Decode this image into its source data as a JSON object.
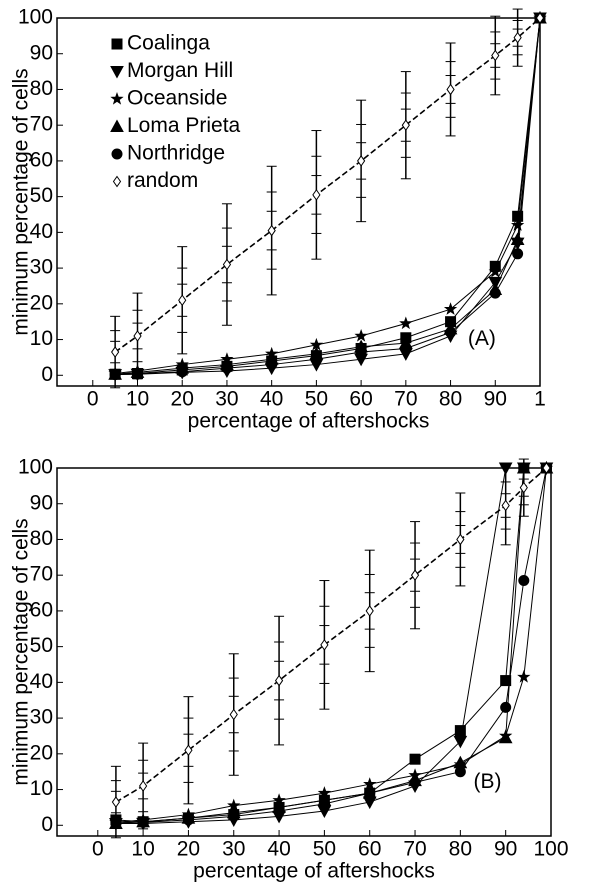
{
  "chart_data": [
    {
      "type": "line",
      "annotation": "(A)",
      "annotation_at": [
        87,
        10
      ],
      "xlabel": "percentage of aftershocks",
      "ylabel": "minimum percentage of cells",
      "x": [
        5,
        10,
        20,
        30,
        40,
        50,
        60,
        70,
        80,
        90,
        95,
        100
      ],
      "xlim": [
        -8,
        100
      ],
      "ylim": [
        -3,
        100
      ],
      "xticks": [
        0,
        10,
        20,
        30,
        40,
        50,
        60,
        70,
        80,
        90,
        {
          "value": 100,
          "label": "1"
        }
      ],
      "yticks": [
        0,
        10,
        20,
        30,
        40,
        50,
        60,
        70,
        80,
        90,
        100
      ],
      "legend": "upper left",
      "series": [
        {
          "name": "Coalinga",
          "marker": "square",
          "color": "#000000",
          "values": [
            0.3,
            0.5,
            1.5,
            2.5,
            4,
            5.5,
            7.5,
            10.5,
            15,
            30.5,
            44.5,
            100
          ]
        },
        {
          "name": "Morgan Hill",
          "marker": "triangle-down",
          "color": "#000000",
          "values": [
            0.2,
            0.3,
            0.8,
            1.2,
            2,
            3,
            4.5,
            6,
            11,
            26,
            37,
            100
          ]
        },
        {
          "name": "Oceanside",
          "marker": "star",
          "color": "#000000",
          "values": [
            0.5,
            1.2,
            3,
            4.5,
            6,
            8.5,
            11,
            14.5,
            18.5,
            29,
            42,
            100
          ]
        },
        {
          "name": "Loma Prieta",
          "marker": "triangle-up",
          "color": "#000000",
          "values": [
            0.3,
            0.8,
            2,
            3,
            4.5,
            6,
            8,
            9,
            13,
            24,
            38,
            100
          ]
        },
        {
          "name": "Northridge",
          "marker": "circle",
          "color": "#000000",
          "values": [
            0.2,
            0.4,
            1,
            2,
            3,
            4.5,
            6.5,
            7.5,
            12,
            23,
            34,
            100
          ]
        },
        {
          "name": "random",
          "marker": "diamond",
          "color": "#000000",
          "dashed": true,
          "values": [
            6.5,
            11,
            21,
            31,
            40.5,
            50.5,
            60,
            70,
            80,
            89.5,
            94.5,
            100
          ],
          "errors": [
            10,
            12,
            15,
            17,
            18,
            18,
            17,
            15,
            13,
            11,
            8,
            0
          ]
        }
      ]
    },
    {
      "type": "line",
      "annotation": "(B)",
      "annotation_at": [
        86,
        12
      ],
      "xlabel": "percentage of aftershocks",
      "ylabel": "minimum percentage of cells",
      "x": [
        4,
        10,
        20,
        30,
        40,
        50,
        60,
        70,
        80,
        90,
        94,
        99
      ],
      "xlim": [
        -9,
        100
      ],
      "ylim": [
        -3,
        100
      ],
      "xticks": [
        0,
        10,
        20,
        30,
        40,
        50,
        60,
        70,
        80,
        90,
        100
      ],
      "yticks": [
        0,
        10,
        20,
        30,
        40,
        50,
        60,
        70,
        80,
        90,
        100
      ],
      "series": [
        {
          "marker": "square",
          "color": "#000000",
          "values": [
            1.5,
            1,
            2,
            3,
            5,
            7,
            9,
            18.5,
            26.5,
            40.5,
            100,
            100
          ]
        },
        {
          "marker": "triangle-down",
          "color": "#000000",
          "values": [
            0.5,
            0.5,
            1,
            1.5,
            2.5,
            4,
            6.5,
            11,
            23.5,
            100,
            100,
            100
          ]
        },
        {
          "marker": "star",
          "color": "#000000",
          "values": [
            0.8,
            1.5,
            3,
            5.5,
            7,
            9,
            11.5,
            14,
            17,
            25,
            41.5,
            100
          ]
        },
        {
          "marker": "triangle-up",
          "color": "#000000",
          "values": [
            0.5,
            1,
            2,
            3.5,
            5,
            7,
            9,
            12.5,
            17.5,
            24.5,
            100,
            100
          ]
        },
        {
          "marker": "circle",
          "color": "#000000",
          "values": [
            1,
            0.8,
            1.5,
            2.5,
            4,
            6,
            9,
            12,
            15,
            33,
            68.5,
            100
          ]
        },
        {
          "marker": "diamond",
          "color": "#000000",
          "dashed": true,
          "values": [
            6.5,
            11,
            21,
            31,
            40.5,
            50.5,
            60,
            70,
            80,
            89.5,
            94.5,
            100
          ],
          "errors": [
            10,
            12,
            15,
            17,
            18,
            18,
            17,
            15,
            13,
            11,
            8,
            0
          ]
        }
      ]
    }
  ]
}
